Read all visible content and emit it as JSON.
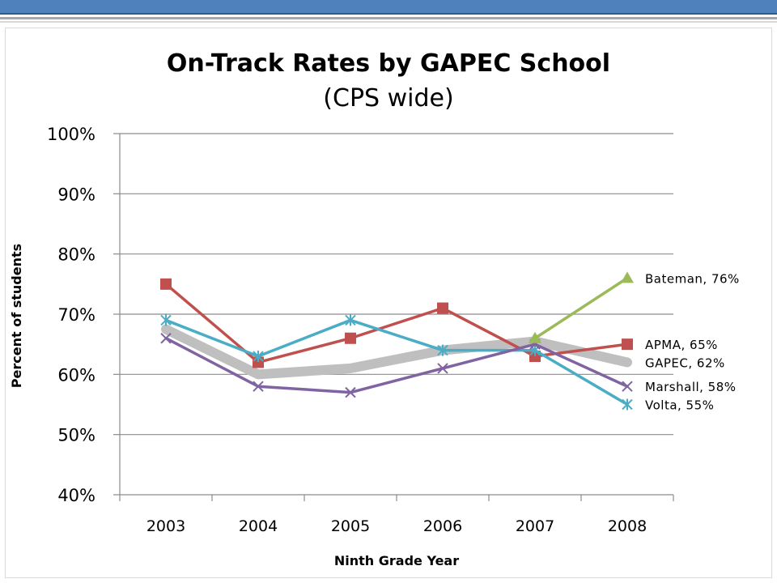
{
  "chart_data": {
    "type": "line",
    "title": "On-Track Rates by GAPEC School",
    "subtitle": "(CPS wide)",
    "xlabel": "Ninth Grade Year",
    "ylabel": "Percent of students",
    "x": [
      "2003",
      "2004",
      "2005",
      "2006",
      "2007",
      "2008"
    ],
    "ylim": [
      40,
      100
    ],
    "yticks": [
      "40%",
      "50%",
      "60%",
      "70%",
      "80%",
      "90%",
      "100%"
    ],
    "grid": true,
    "series": [
      {
        "name": "GAPEC",
        "label": "GAPEC, 62%",
        "values": [
          67.5,
          60,
          61,
          64,
          65.5,
          62
        ],
        "color": "#bfbfbf",
        "marker": "none"
      },
      {
        "name": "APMA",
        "label": "APMA, 65%",
        "values": [
          75,
          62,
          66,
          71,
          63,
          65
        ],
        "color": "#c0504d",
        "marker": "square"
      },
      {
        "name": "Volta",
        "label": "Volta, 55%",
        "values": [
          69,
          63,
          69,
          64,
          64,
          55
        ],
        "color": "#4bacc6",
        "marker": "asterisk"
      },
      {
        "name": "Marshall",
        "label": "Marshall, 58%",
        "values": [
          66,
          58,
          57,
          61,
          65,
          58
        ],
        "color": "#8064a2",
        "marker": "x"
      },
      {
        "name": "Bateman",
        "label": "Bateman, 76%",
        "values": [
          null,
          null,
          null,
          null,
          66,
          76
        ],
        "color": "#9bbb59",
        "marker": "triangle"
      }
    ]
  }
}
